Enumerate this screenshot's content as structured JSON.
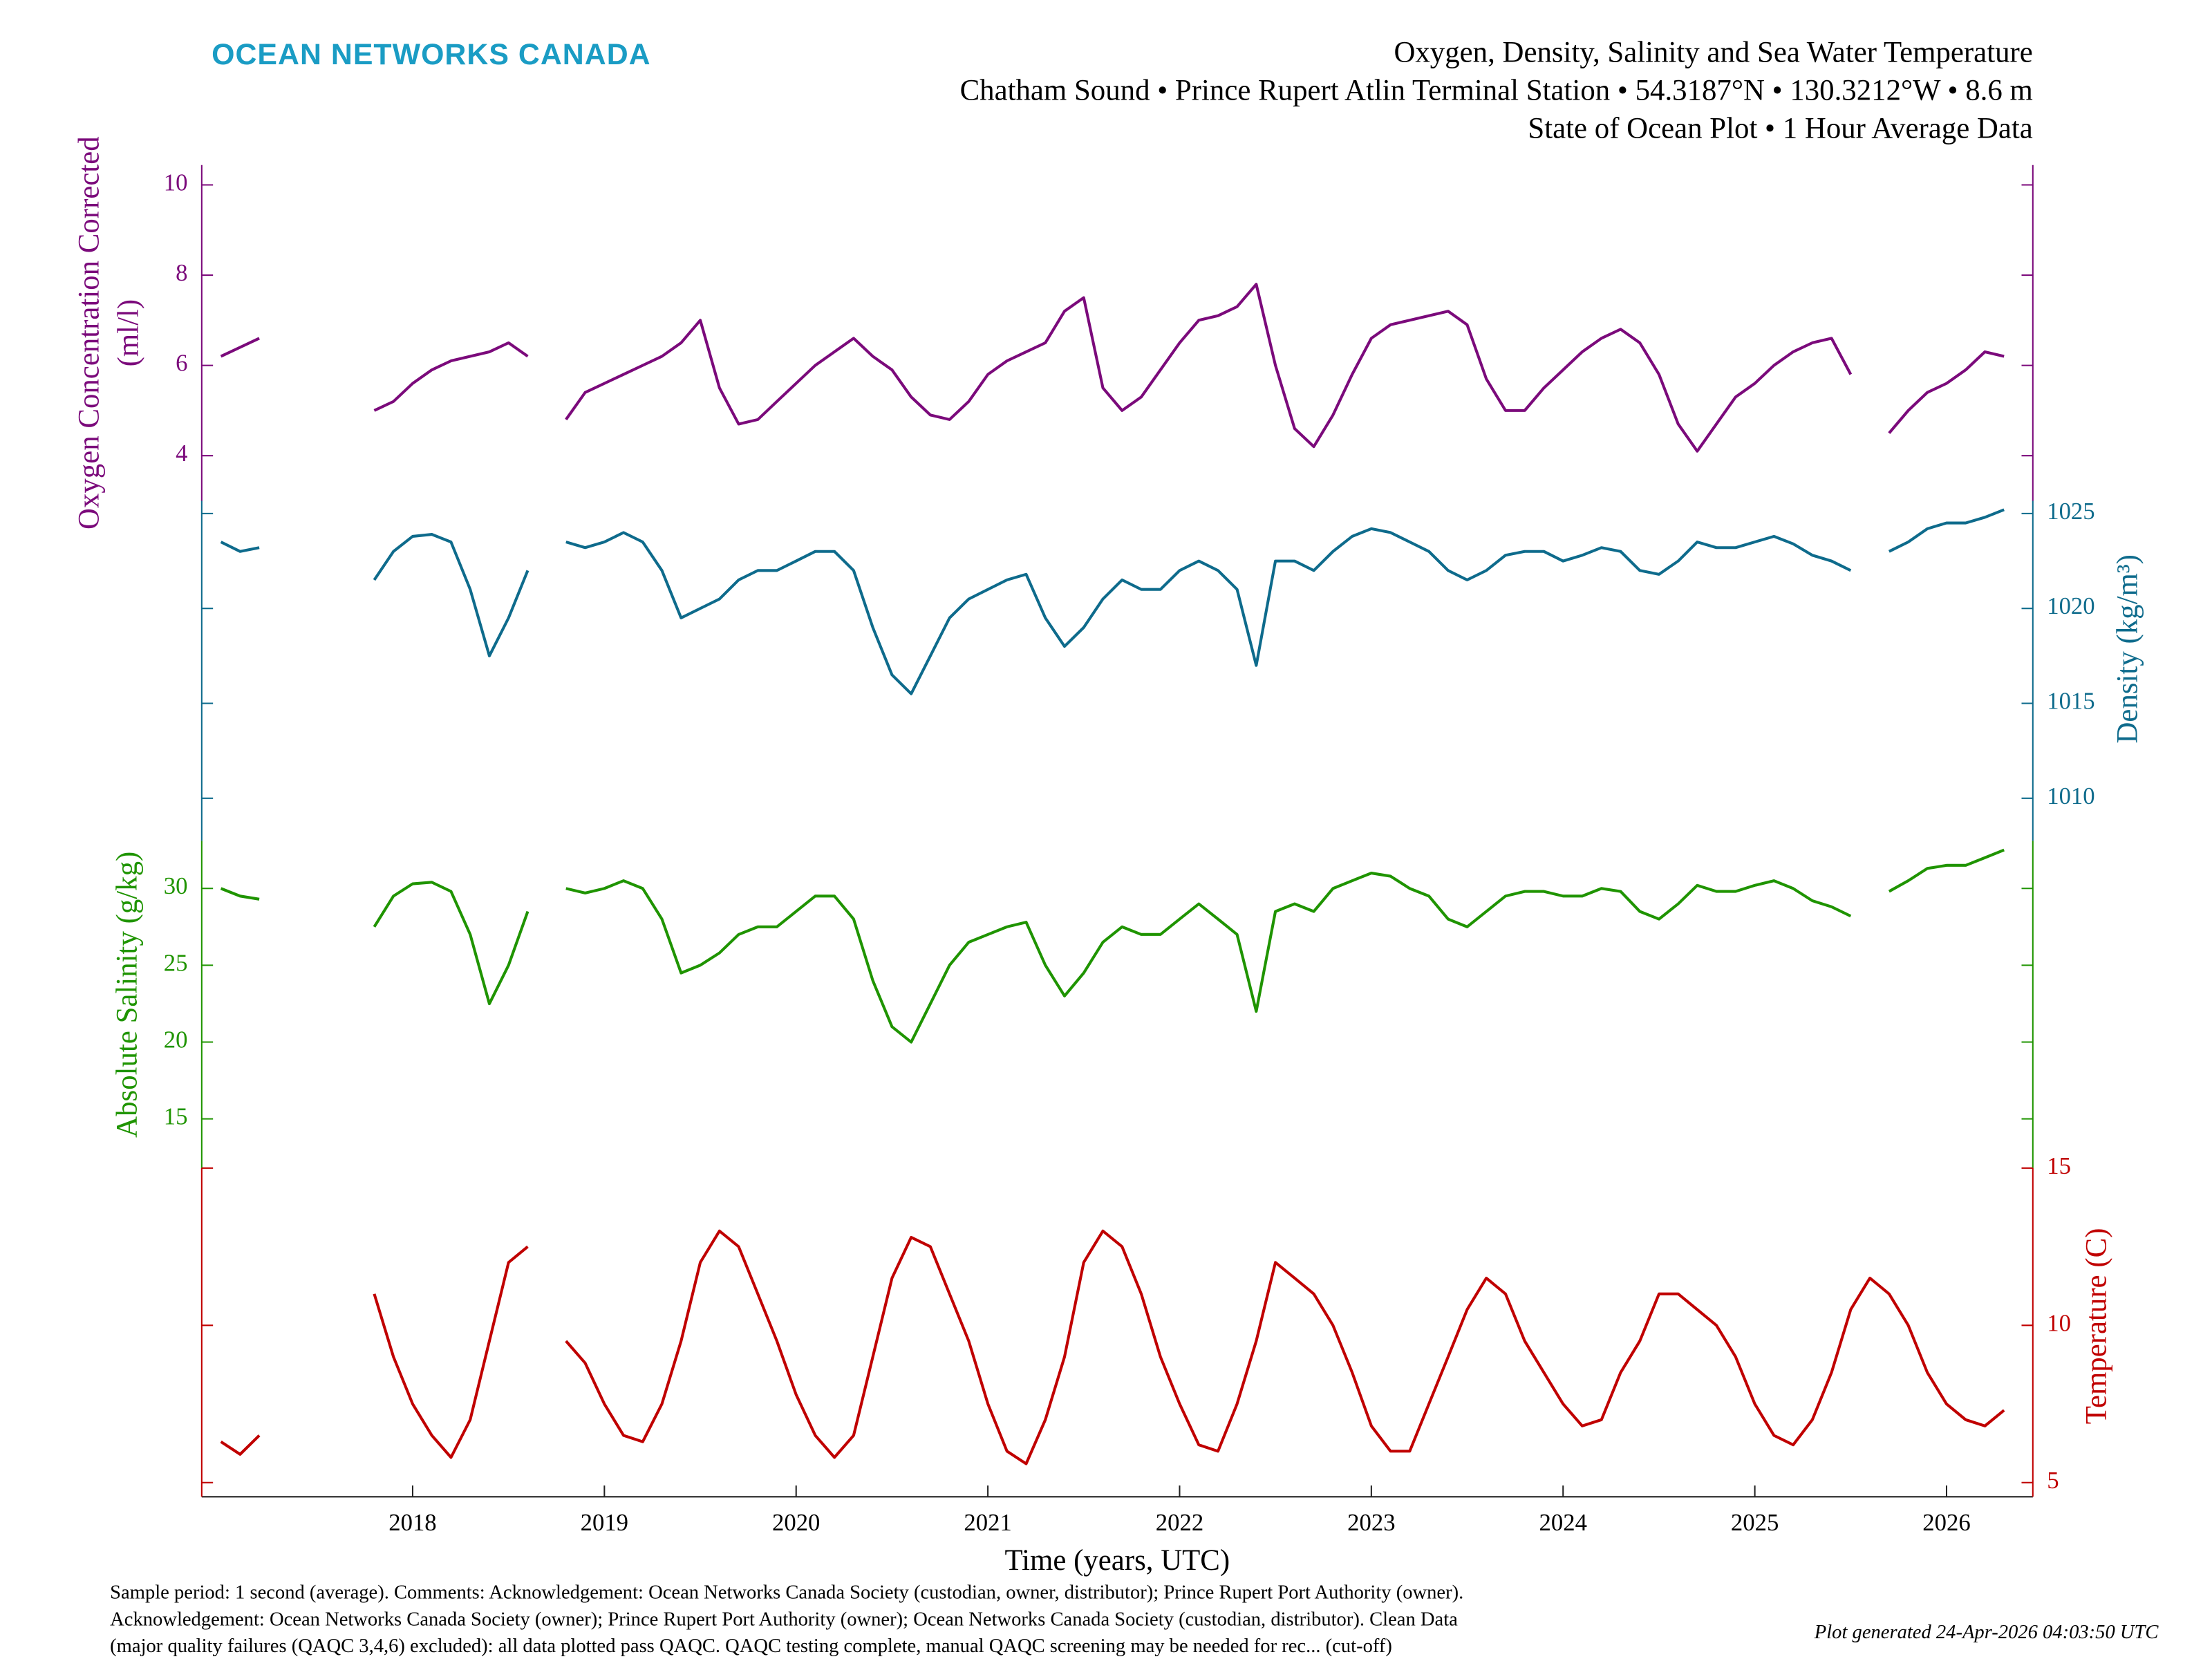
{
  "chart_data": {
    "type": "line",
    "brand": "OCEAN NETWORKS CANADA",
    "title": "Oxygen, Density, Salinity and Sea Water Temperature",
    "subtitle": [
      "Chatham Sound • Prince Rupert Atlin Terminal Station • 54.3187°N • 130.3212°W • 8.6 m",
      "State of Ocean Plot • 1 Hour Average Data"
    ],
    "xlabel": "Time (years, UTC)",
    "xlim": [
      2016.9,
      2026.45
    ],
    "xticks": [
      2018,
      2019,
      2020,
      2021,
      2022,
      2023,
      2024,
      2025,
      2026
    ],
    "x": [
      2017.0,
      2017.1,
      2017.2,
      2017.3,
      2017.4,
      2017.5,
      2017.6,
      2017.7,
      2017.8,
      2017.9,
      2018.0,
      2018.1,
      2018.2,
      2018.3,
      2018.4,
      2018.5,
      2018.6,
      2018.7,
      2018.8,
      2018.9,
      2019.0,
      2019.1,
      2019.2,
      2019.3,
      2019.4,
      2019.5,
      2019.6,
      2019.7,
      2019.8,
      2019.9,
      2020.0,
      2020.1,
      2020.2,
      2020.3,
      2020.4,
      2020.5,
      2020.6,
      2020.7,
      2020.8,
      2020.9,
      2021.0,
      2021.1,
      2021.2,
      2021.3,
      2021.4,
      2021.5,
      2021.6,
      2021.7,
      2021.8,
      2021.9,
      2022.0,
      2022.1,
      2022.2,
      2022.3,
      2022.4,
      2022.5,
      2022.6,
      2022.7,
      2022.8,
      2022.9,
      2023.0,
      2023.1,
      2023.2,
      2023.3,
      2023.4,
      2023.5,
      2023.6,
      2023.7,
      2023.8,
      2023.9,
      2024.0,
      2024.1,
      2024.2,
      2024.3,
      2024.4,
      2024.5,
      2024.6,
      2024.7,
      2024.8,
      2024.9,
      2025.0,
      2025.1,
      2025.2,
      2025.3,
      2025.4,
      2025.5,
      2025.6,
      2025.7,
      2025.8,
      2025.9,
      2026.0,
      2026.1,
      2026.2,
      2026.3
    ],
    "series": [
      {
        "label": [
          "Oxygen Concentration Corrected",
          "(ml/l)"
        ],
        "color": "#7b0a7b",
        "side": "left",
        "ylim": [
          3.0,
          10.44
        ],
        "yticks": [
          4,
          6,
          8,
          10
        ],
        "values": [
          6.2,
          6.4,
          6.6,
          null,
          null,
          null,
          null,
          null,
          5.0,
          5.2,
          5.6,
          5.9,
          6.1,
          6.2,
          6.3,
          6.5,
          6.2,
          null,
          4.8,
          5.4,
          5.6,
          5.8,
          6.0,
          6.2,
          6.5,
          7.0,
          5.5,
          4.7,
          4.8,
          5.2,
          5.6,
          6.0,
          6.3,
          6.6,
          6.2,
          5.9,
          5.3,
          4.9,
          4.8,
          5.2,
          5.8,
          6.1,
          6.3,
          6.5,
          7.2,
          7.5,
          5.5,
          5.0,
          5.3,
          5.9,
          6.5,
          7.0,
          7.1,
          7.3,
          7.8,
          6.0,
          4.6,
          4.2,
          4.9,
          5.8,
          6.6,
          6.9,
          7.0,
          7.1,
          7.2,
          6.9,
          5.7,
          5.0,
          5.0,
          5.5,
          5.9,
          6.3,
          6.6,
          6.8,
          6.5,
          5.8,
          4.7,
          4.1,
          4.7,
          5.3,
          5.6,
          6.0,
          6.3,
          6.5,
          6.6,
          5.8,
          null,
          4.5,
          5.0,
          5.4,
          5.6,
          5.9,
          6.3,
          6.2
        ]
      },
      {
        "label": [
          "Density (kg/m³)"
        ],
        "color": "#0e6b8c",
        "side": "right",
        "ylim": [
          1007.76,
          1025.67
        ],
        "yticks": [
          1010,
          1015,
          1020,
          1025
        ],
        "values": [
          1023.5,
          1023.0,
          1023.2,
          null,
          null,
          null,
          null,
          null,
          1021.5,
          1023.0,
          1023.8,
          1023.9,
          1023.5,
          1021.0,
          1017.5,
          1019.5,
          1022.0,
          null,
          1023.5,
          1023.2,
          1023.5,
          1024.0,
          1023.5,
          1022.0,
          1019.5,
          1020.0,
          1020.5,
          1021.5,
          1022.0,
          1022.0,
          1022.5,
          1023.0,
          1023.0,
          1022.0,
          1019.0,
          1016.5,
          1015.5,
          1017.5,
          1019.5,
          1020.5,
          1021.0,
          1021.5,
          1021.8,
          1019.5,
          1018.0,
          1019.0,
          1020.5,
          1021.5,
          1021.0,
          1021.0,
          1022.0,
          1022.5,
          1022.0,
          1021.0,
          1017.0,
          1022.5,
          1022.5,
          1022.0,
          1023.0,
          1023.8,
          1024.2,
          1024.0,
          1023.5,
          1023.0,
          1022.0,
          1021.5,
          1022.0,
          1022.8,
          1023.0,
          1023.0,
          1022.5,
          1022.8,
          1023.2,
          1023.0,
          1022.0,
          1021.8,
          1022.5,
          1023.5,
          1023.2,
          1023.2,
          1023.5,
          1023.8,
          1023.4,
          1022.8,
          1022.5,
          1022.0,
          null,
          1023.0,
          1023.5,
          1024.2,
          1024.5,
          1024.5,
          1024.8,
          1025.2
        ]
      },
      {
        "label": [
          "Absolute Salinity (g/kg)"
        ],
        "color": "#1f9400",
        "side": "left",
        "ylim": [
          11.8,
          33.1
        ],
        "yticks": [
          15,
          20,
          25,
          30
        ],
        "values": [
          30.0,
          29.5,
          29.3,
          null,
          null,
          null,
          null,
          null,
          27.5,
          29.5,
          30.3,
          30.4,
          29.8,
          27.0,
          22.5,
          25.0,
          28.5,
          null,
          30.0,
          29.7,
          30.0,
          30.5,
          30.0,
          28.0,
          24.5,
          25.0,
          25.8,
          27.0,
          27.5,
          27.5,
          28.5,
          29.5,
          29.5,
          28.0,
          24.0,
          21.0,
          20.0,
          22.5,
          25.0,
          26.5,
          27.0,
          27.5,
          27.8,
          25.0,
          23.0,
          24.5,
          26.5,
          27.5,
          27.0,
          27.0,
          28.0,
          29.0,
          28.0,
          27.0,
          22.0,
          28.5,
          29.0,
          28.5,
          30.0,
          30.5,
          31.0,
          30.8,
          30.0,
          29.5,
          28.0,
          27.5,
          28.5,
          29.5,
          29.8,
          29.8,
          29.5,
          29.5,
          30.0,
          29.8,
          28.5,
          28.0,
          29.0,
          30.2,
          29.8,
          29.8,
          30.2,
          30.5,
          30.0,
          29.2,
          28.8,
          28.2,
          null,
          29.8,
          30.5,
          31.3,
          31.5,
          31.5,
          32.0,
          32.5
        ]
      },
      {
        "label": [
          "Temperature (C)"
        ],
        "color": "#c00000",
        "side": "right",
        "ylim": [
          4.55,
          15
        ],
        "yticks": [
          5,
          10,
          15
        ],
        "values": [
          6.3,
          5.9,
          6.5,
          null,
          null,
          null,
          null,
          null,
          11.0,
          9.0,
          7.5,
          6.5,
          5.8,
          7.0,
          9.5,
          12.0,
          12.5,
          null,
          9.5,
          8.8,
          7.5,
          6.5,
          6.3,
          7.5,
          9.5,
          12.0,
          13.0,
          12.5,
          11.0,
          9.5,
          7.8,
          6.5,
          5.8,
          6.5,
          9.0,
          11.5,
          12.8,
          12.5,
          11.0,
          9.5,
          7.5,
          6.0,
          5.6,
          7.0,
          9.0,
          12.0,
          13.0,
          12.5,
          11.0,
          9.0,
          7.5,
          6.2,
          6.0,
          7.5,
          9.5,
          12.0,
          11.5,
          11.0,
          10.0,
          8.5,
          6.8,
          6.0,
          6.0,
          7.5,
          9.0,
          10.5,
          11.5,
          11.0,
          9.5,
          8.5,
          7.5,
          6.8,
          7.0,
          8.5,
          9.5,
          11.0,
          11.0,
          10.5,
          10.0,
          9.0,
          7.5,
          6.5,
          6.2,
          7.0,
          8.5,
          10.5,
          11.5,
          11.0,
          10.0,
          8.5,
          7.5,
          7.0,
          6.8,
          7.3
        ]
      }
    ],
    "footnote": [
      "Sample period: 1 second (average). Comments: Acknowledgement: Ocean Networks Canada Society (custodian, owner, distributor); Prince Rupert Port Authority (owner).",
      "Acknowledgement: Ocean Networks Canada Society (owner); Prince Rupert Port Authority (owner); Ocean Networks Canada Society (custodian, distributor). Clean Data",
      "(major quality failures (QAQC 3,4,6) excluded): all data plotted pass QAQC. QAQC testing complete, manual QAQC screening may be needed for rec... (cut-off)"
    ],
    "generated": "Plot generated 24-Apr-2026 04:03:50 UTC"
  }
}
